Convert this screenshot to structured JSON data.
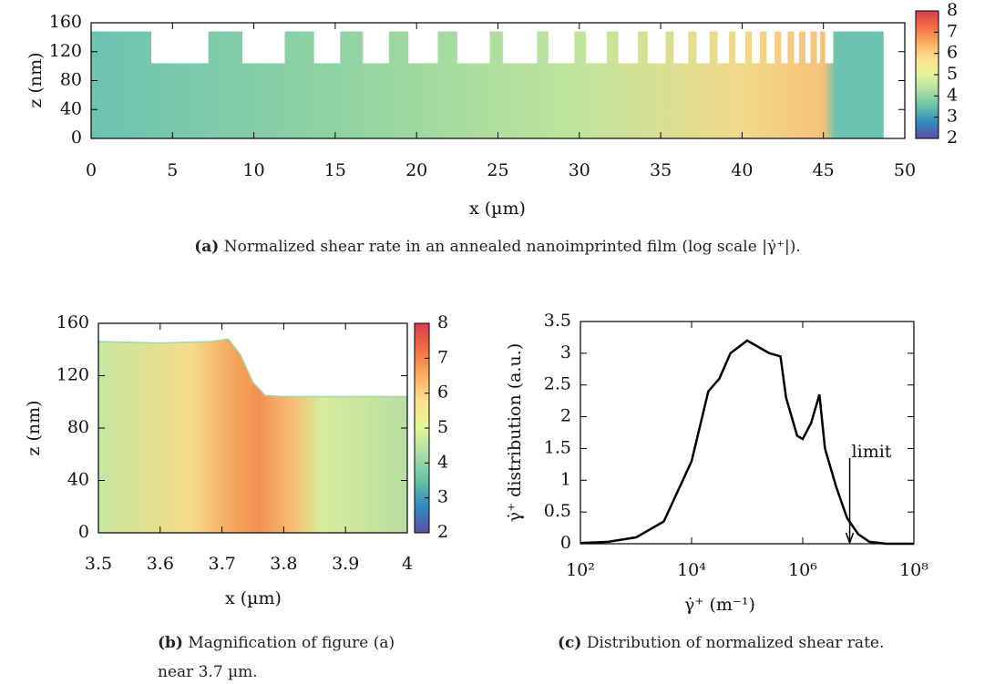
{
  "chart_data": [
    {
      "type": "heatmap",
      "label": "(a)",
      "caption": "Normalized shear rate in an annealed nanoimprinted film (log scale |γ̇⁺|).",
      "xlabel": "x (µm)",
      "ylabel": "z (nm)",
      "xlim": [
        0,
        50
      ],
      "ylim": [
        0,
        160
      ],
      "xticks": [
        0,
        5,
        10,
        15,
        20,
        25,
        30,
        35,
        40,
        45,
        50
      ],
      "yticks": [
        0,
        40,
        80,
        120,
        160
      ],
      "base": 104,
      "top": 148,
      "pillars": [
        [
          0,
          3.7
        ],
        [
          7.2,
          9.3
        ],
        [
          11.9,
          13.7
        ],
        [
          15.3,
          16.7
        ],
        [
          18.3,
          19.5
        ],
        [
          21.3,
          22.5
        ],
        [
          24.5,
          25.3
        ],
        [
          27.4,
          28.1
        ],
        [
          29.7,
          30.4
        ],
        [
          31.7,
          32.4
        ],
        [
          33.6,
          34.2
        ],
        [
          35.3,
          35.8
        ],
        [
          36.7,
          37.2
        ],
        [
          38.0,
          38.5
        ],
        [
          39.2,
          39.6
        ],
        [
          40.2,
          40.6
        ],
        [
          41.1,
          41.5
        ],
        [
          42.0,
          42.4
        ],
        [
          42.8,
          43.2
        ],
        [
          43.5,
          43.9
        ],
        [
          44.2,
          44.6
        ],
        [
          44.8,
          45.1
        ],
        [
          45.6,
          48.7
        ]
      ],
      "colorbar": {
        "lim": [
          2,
          8
        ],
        "ticks": [
          2,
          3,
          4,
          5,
          6,
          7,
          8
        ],
        "colors": [
          "#5e4fa2",
          "#3288bd",
          "#66c2a5",
          "#abdda4",
          "#e6f598",
          "#fee08b",
          "#fdae61",
          "#f46d43",
          "#d53e4f"
        ]
      }
    },
    {
      "type": "heatmap",
      "label": "(b)",
      "caption": "Magnification of figure (a) near 3.7 µm.",
      "xlabel": "x (µm)",
      "ylabel": "z (nm)",
      "xlim": [
        3.5,
        4
      ],
      "ylim": [
        0,
        160
      ],
      "xticks": [
        3.5,
        3.6,
        3.7,
        3.8,
        3.9,
        4
      ],
      "yticks": [
        0,
        40,
        80,
        120,
        160
      ],
      "surface": {
        "x": [
          3.5,
          3.6,
          3.68,
          3.71,
          3.73,
          3.75,
          3.77,
          3.8,
          4
        ],
        "z": [
          146,
          145,
          146,
          148,
          136,
          115,
          105,
          104,
          104
        ]
      },
      "colorbar": {
        "lim": [
          2,
          8
        ],
        "ticks": [
          2,
          3,
          4,
          5,
          6,
          7,
          8
        ],
        "colors": [
          "#5e4fa2",
          "#3288bd",
          "#66c2a5",
          "#abdda4",
          "#e6f598",
          "#fee08b",
          "#fdae61",
          "#f46d43",
          "#d53e4f"
        ]
      }
    },
    {
      "type": "line",
      "label": "(c)",
      "caption": "Distribution of normalized shear rate.",
      "xlabel": "γ̇⁺ (m⁻¹)",
      "ylabel": "γ̇⁺ distribution (a.u.)",
      "xlog": true,
      "color": "#000000",
      "xlim": [
        100,
        100000000
      ],
      "ylim": [
        0,
        3.5
      ],
      "xticks": [
        {
          "value": 100,
          "label": "10²"
        },
        {
          "value": 10000,
          "label": "10⁴"
        },
        {
          "value": 1000000,
          "label": "10⁶"
        },
        {
          "value": 100000000,
          "label": "10⁸"
        }
      ],
      "yticks": [
        0,
        0.5,
        1,
        1.5,
        2,
        2.5,
        3,
        3.5
      ],
      "x": [
        100,
        316,
        1000,
        3162,
        10000,
        20000,
        31623,
        50000,
        100000,
        158489,
        251189,
        398107,
        501187,
        794328,
        1000000,
        1412538,
        1995262,
        2511886,
        3981072,
        6309573,
        10000000,
        15848932,
        31622777,
        100000000
      ],
      "values": [
        0.01,
        0.03,
        0.1,
        0.35,
        1.3,
        2.4,
        2.6,
        3.0,
        3.2,
        3.1,
        3.0,
        2.95,
        2.3,
        1.7,
        1.65,
        1.9,
        2.35,
        1.5,
        0.9,
        0.4,
        0.15,
        0.03,
        0,
        0
      ],
      "annotation": {
        "text": "limit",
        "x": 7000000,
        "y": 1.35
      }
    }
  ]
}
